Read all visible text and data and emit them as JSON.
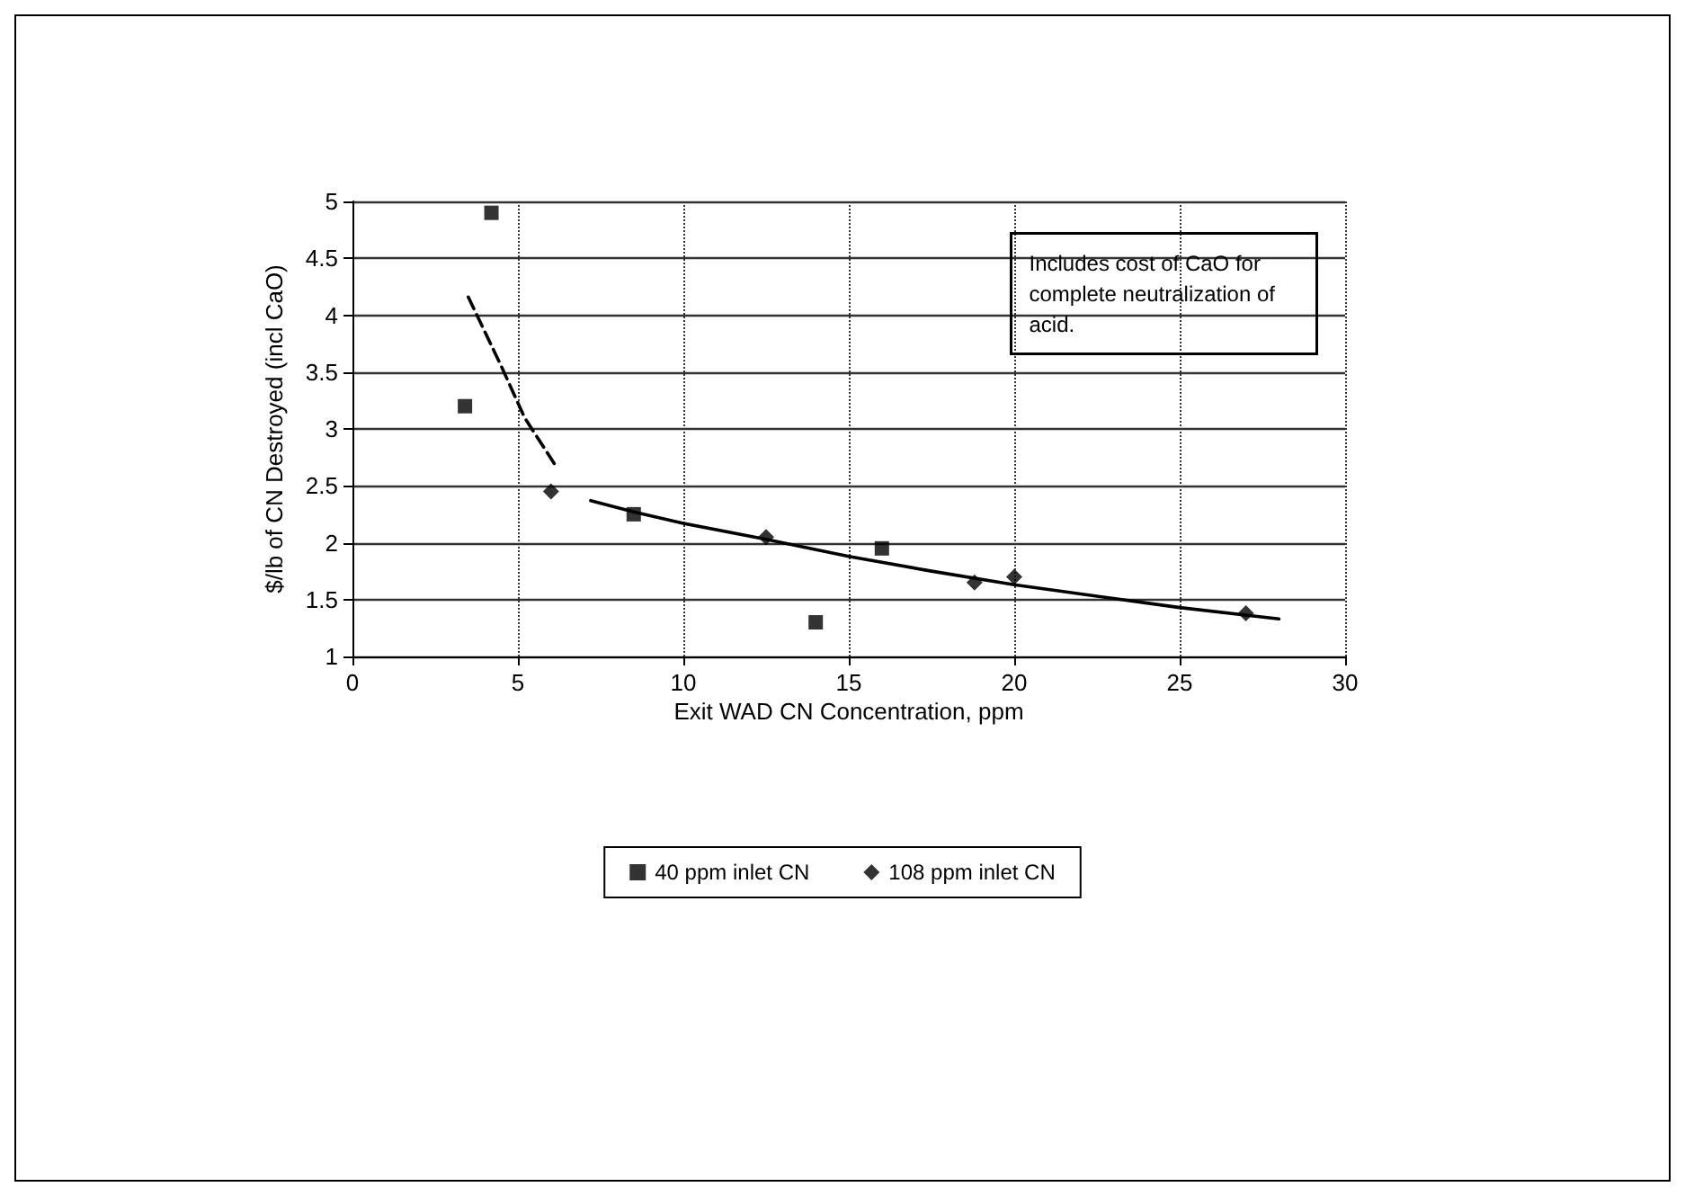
{
  "chart_data": {
    "type": "scatter",
    "xlabel": "Exit WAD CN Concentration, ppm",
    "ylabel": "$/lb of CN Destroyed (incl CaO)",
    "annotations": [
      "Includes cost of CaO for complete neutralization of acid."
    ],
    "series": [
      {
        "name": "40 ppm inlet CN",
        "color": "#000000",
        "marker": "square",
        "x": [
          3.4,
          4.2,
          8.5,
          14,
          16
        ],
        "values": [
          3.2,
          4.9,
          2.25,
          1.3,
          1.95
        ]
      },
      {
        "name": "108 ppm inlet CN",
        "color": "#000000",
        "marker": "diamond",
        "x": [
          6,
          12.5,
          18.8,
          20,
          27
        ],
        "values": [
          2.45,
          2.05,
          1.65,
          1.7,
          1.38
        ]
      },
      {
        "type": "line",
        "color": "#000000",
        "marker": "none",
        "line_style": "dashed",
        "x": [
          3.5,
          4.5,
          5.2,
          6.2
        ],
        "values": [
          4.16,
          3.55,
          3.1,
          2.65
        ]
      },
      {
        "type": "line",
        "color": "#000000",
        "marker": "none",
        "line_style": "solid",
        "x": [
          7.2,
          8.5,
          10,
          12.5,
          15,
          17.5,
          20,
          22.5,
          25,
          28
        ],
        "values": [
          2.37,
          2.27,
          2.17,
          2.03,
          1.88,
          1.75,
          1.63,
          1.53,
          1.43,
          1.33
        ]
      }
    ],
    "xlim": [
      0,
      30
    ],
    "xticks": [
      0,
      5,
      10,
      15,
      20,
      25,
      30
    ],
    "ylim": [
      1,
      5
    ],
    "yticks": [
      1,
      1.5,
      2,
      2.5,
      3,
      3.5,
      4,
      4.5,
      5
    ],
    "grid": true,
    "legend": "bottom"
  }
}
